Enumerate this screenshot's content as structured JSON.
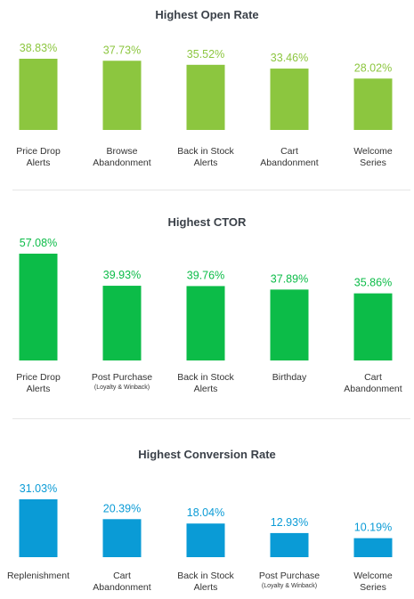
{
  "chart_data": [
    {
      "type": "bar",
      "title": "Highest Open Rate",
      "color": "#8cc63f",
      "categories": [
        {
          "line1": "Price Drop",
          "line2": "Alerts"
        },
        {
          "line1": "Browse",
          "line2": "Abandonment"
        },
        {
          "line1": "Back in Stock",
          "line2": "Alerts"
        },
        {
          "line1": "Cart",
          "line2": "Abandonment"
        },
        {
          "line1": "Welcome",
          "line2": "Series"
        }
      ],
      "values": [
        38.83,
        37.73,
        35.52,
        33.46,
        28.02
      ],
      "value_labels": [
        "38.83%",
        "37.73%",
        "35.52%",
        "33.46%",
        "28.02%"
      ]
    },
    {
      "type": "bar",
      "title": "Highest CTOR",
      "color": "#0cbc48",
      "categories": [
        {
          "line1": "Price Drop",
          "line2": "Alerts"
        },
        {
          "line1": "Post Purchase",
          "sub": "(Loyalty & Winback)"
        },
        {
          "line1": "Back in Stock",
          "line2": "Alerts"
        },
        {
          "line1": "Birthday"
        },
        {
          "line1": "Cart",
          "line2": "Abandonment"
        }
      ],
      "values": [
        57.08,
        39.93,
        39.76,
        37.89,
        35.86
      ],
      "value_labels": [
        "57.08%",
        "39.93%",
        "39.76%",
        "37.89%",
        "35.86%"
      ]
    },
    {
      "type": "bar",
      "title": "Highest Conversion Rate",
      "color": "#0a9bd6",
      "categories": [
        {
          "line1": "Replenishment"
        },
        {
          "line1": "Cart",
          "line2": "Abandonment"
        },
        {
          "line1": "Back in Stock",
          "line2": "Alerts"
        },
        {
          "line1": "Post Purchase",
          "sub": "(Loyalty & Winback)"
        },
        {
          "line1": "Welcome",
          "line2": "Series"
        }
      ],
      "values": [
        31.03,
        20.39,
        18.04,
        12.93,
        10.19
      ],
      "value_labels": [
        "31.03%",
        "20.39%",
        "18.04%",
        "12.93%",
        "10.19%"
      ]
    }
  ]
}
